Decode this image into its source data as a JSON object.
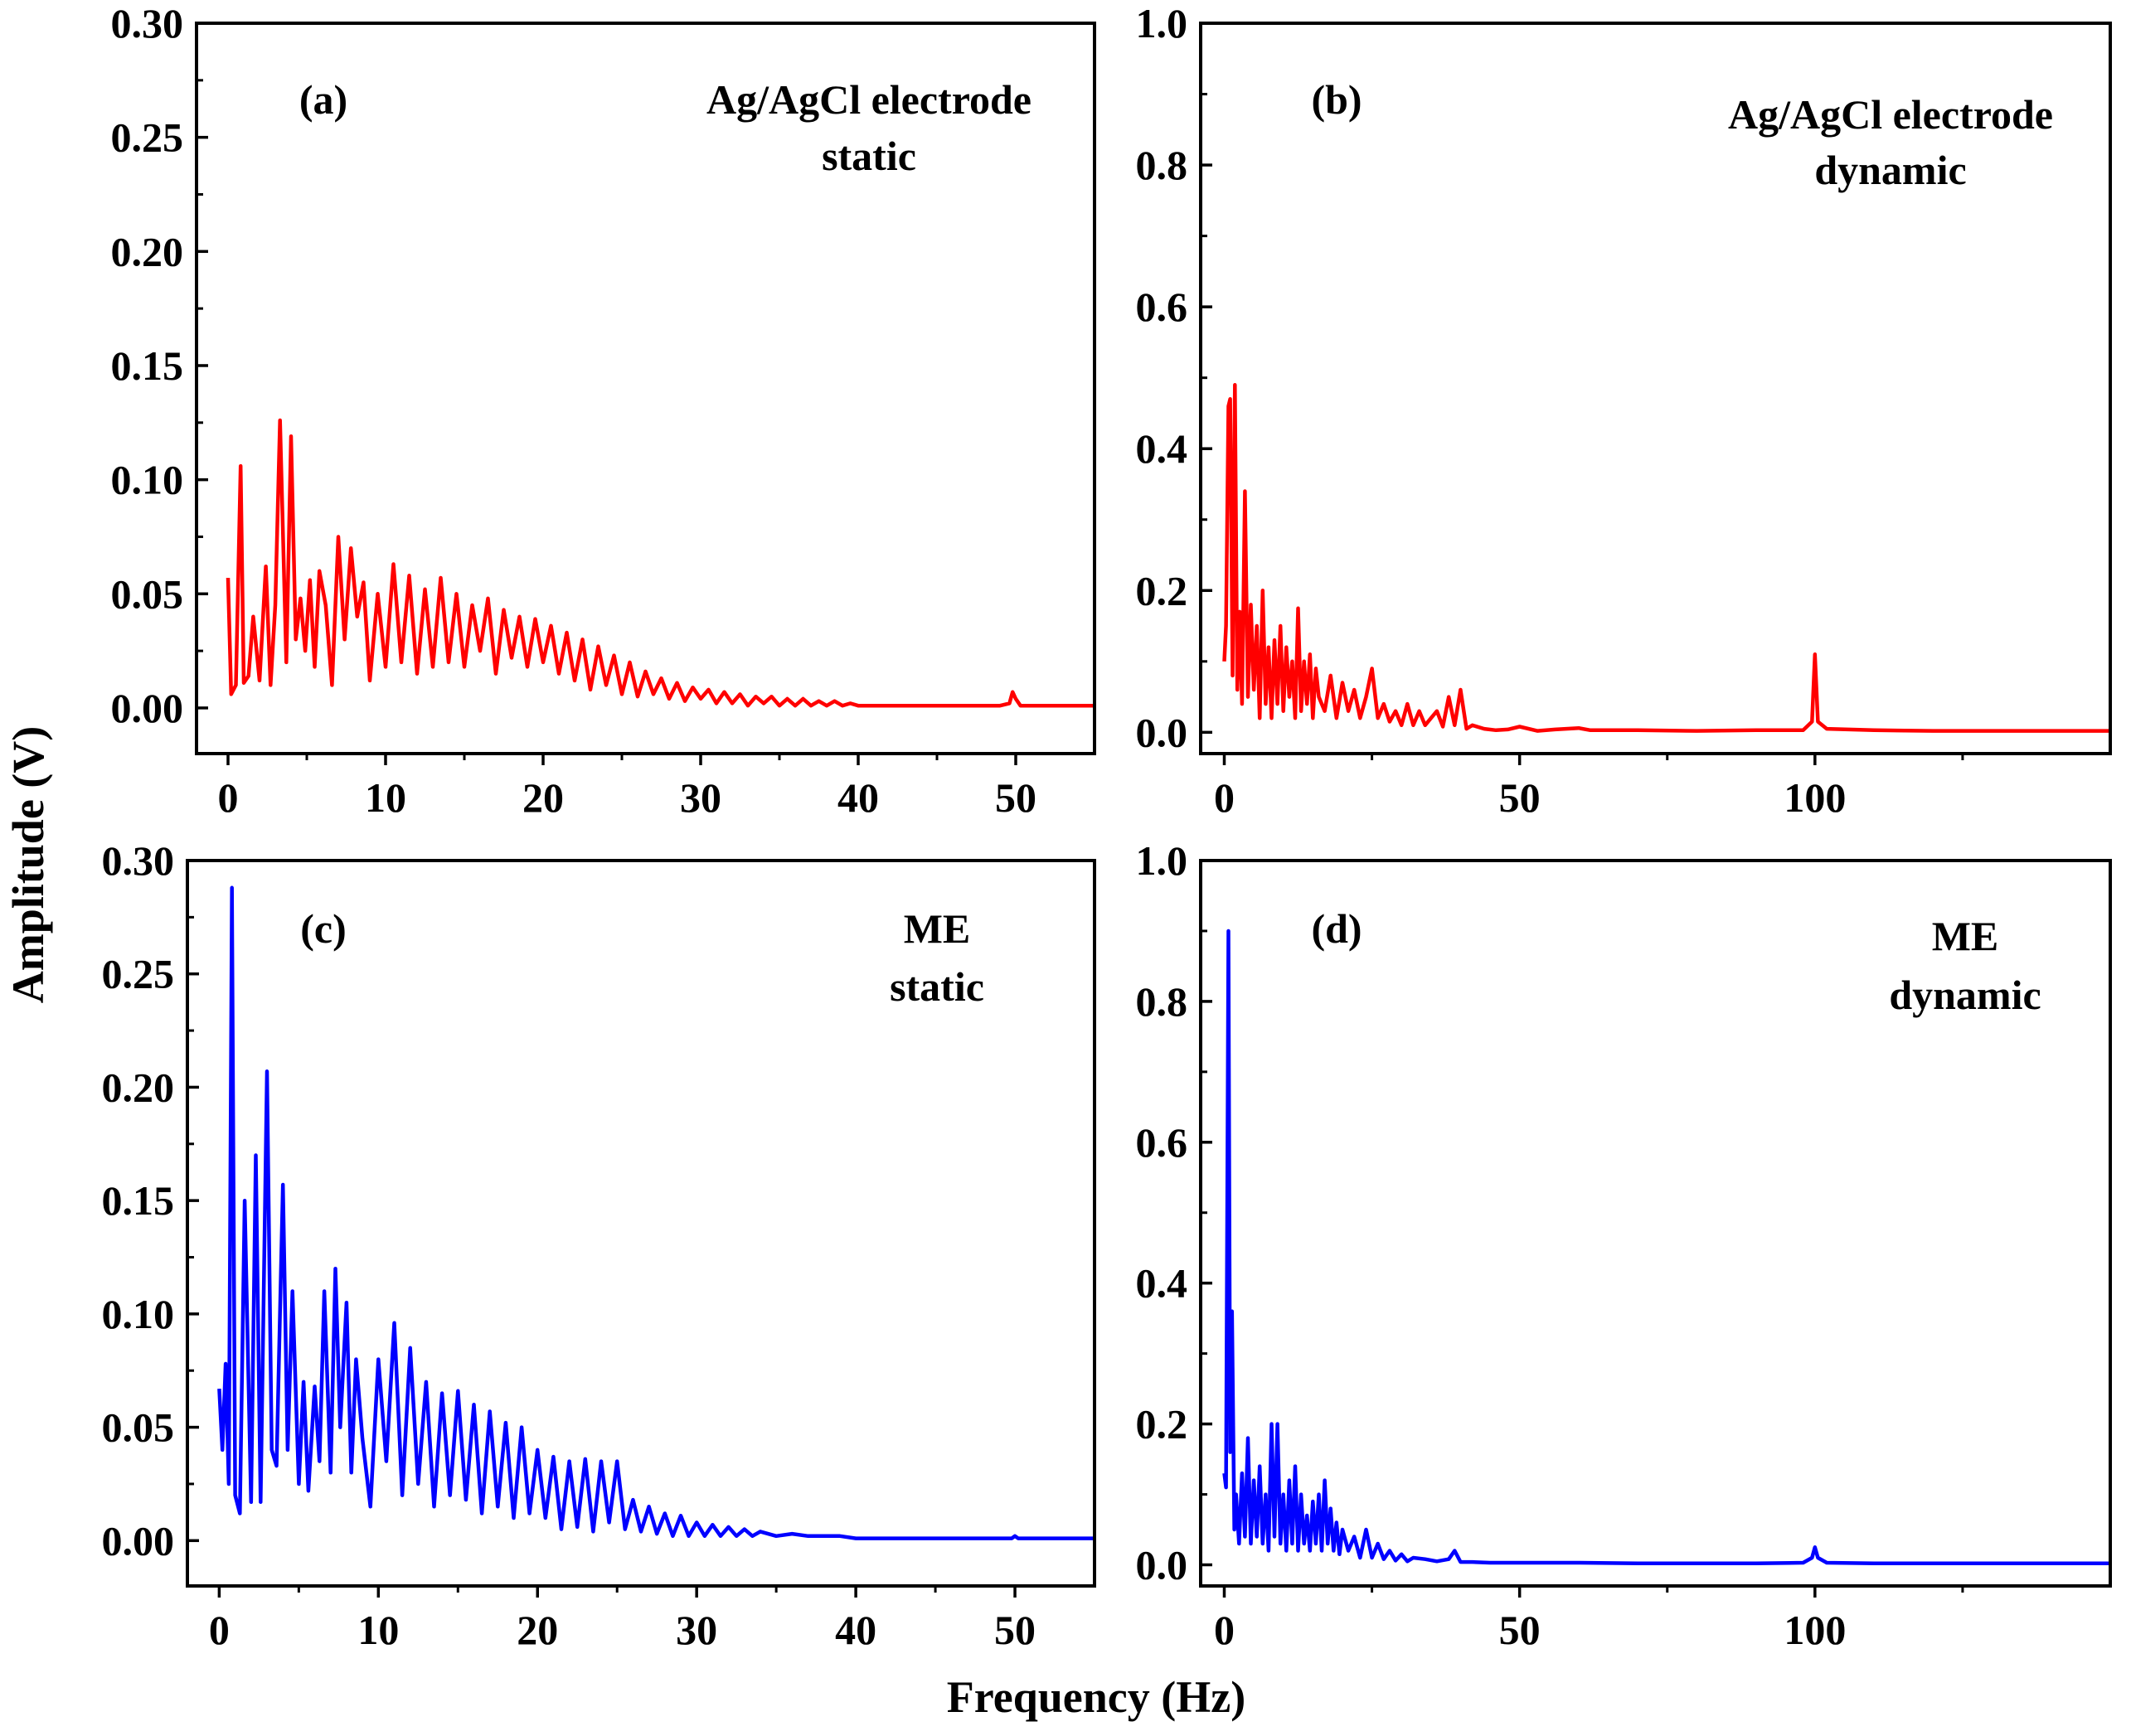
{
  "figure": {
    "ylabel": "Amplitude (V)",
    "xlabel": "Frequency (Hz)"
  },
  "chart_data": [
    {
      "type": "line",
      "panel": "(a)",
      "title_lines": [
        "Ag/AgCl electrode",
        "static"
      ],
      "color": "#ff0000",
      "xlim": [
        -2,
        55
      ],
      "ylim": [
        -0.02,
        0.3
      ],
      "xticks": [
        0,
        10,
        20,
        30,
        40,
        50
      ],
      "xtick_labels": [
        "0",
        "10",
        "20",
        "30",
        "40",
        "50"
      ],
      "yticks": [
        0.0,
        0.05,
        0.1,
        0.15,
        0.2,
        0.25,
        0.3
      ],
      "ytick_labels": [
        "0.00",
        "0.05",
        "0.10",
        "0.15",
        "0.20",
        "0.25",
        "0.30"
      ],
      "series": [
        {
          "name": "Ag/AgCl static",
          "x": [
            0,
            0.2,
            0.5,
            0.8,
            1.0,
            1.3,
            1.6,
            2.0,
            2.4,
            2.7,
            3.0,
            3.3,
            3.7,
            4.0,
            4.3,
            4.6,
            4.9,
            5.2,
            5.5,
            5.8,
            6.2,
            6.6,
            7.0,
            7.4,
            7.8,
            8.2,
            8.6,
            9.0,
            9.5,
            10.0,
            10.5,
            11.0,
            11.5,
            12.0,
            12.5,
            13.0,
            13.5,
            14.0,
            14.5,
            15.0,
            15.5,
            16.0,
            16.5,
            17.0,
            17.5,
            18.0,
            18.5,
            19.0,
            19.5,
            20.0,
            20.5,
            21.0,
            21.5,
            22.0,
            22.5,
            23.0,
            23.5,
            24.0,
            24.5,
            25.0,
            25.5,
            26.0,
            26.5,
            27.0,
            27.5,
            28.0,
            28.5,
            29.0,
            29.5,
            30.0,
            30.5,
            31.0,
            31.5,
            32.0,
            32.5,
            33.0,
            33.5,
            34.0,
            34.5,
            35.0,
            35.5,
            36.0,
            36.5,
            37.0,
            37.5,
            38.0,
            38.5,
            39.0,
            39.5,
            40.0,
            41.0,
            42.0,
            43.0,
            44.0,
            45.0,
            46.0,
            47.0,
            48.0,
            49.0,
            49.6,
            49.8,
            50.0,
            50.3,
            50.8,
            52.0,
            53.0,
            54.0,
            55.0
          ],
          "y": [
            0.057,
            0.006,
            0.01,
            0.106,
            0.011,
            0.014,
            0.04,
            0.012,
            0.062,
            0.01,
            0.045,
            0.126,
            0.02,
            0.119,
            0.03,
            0.048,
            0.025,
            0.056,
            0.018,
            0.06,
            0.045,
            0.01,
            0.075,
            0.03,
            0.07,
            0.04,
            0.055,
            0.012,
            0.05,
            0.018,
            0.063,
            0.02,
            0.058,
            0.015,
            0.052,
            0.018,
            0.057,
            0.02,
            0.05,
            0.018,
            0.045,
            0.025,
            0.048,
            0.015,
            0.043,
            0.022,
            0.04,
            0.018,
            0.039,
            0.02,
            0.036,
            0.015,
            0.033,
            0.012,
            0.03,
            0.008,
            0.027,
            0.01,
            0.023,
            0.006,
            0.02,
            0.005,
            0.016,
            0.006,
            0.013,
            0.004,
            0.011,
            0.003,
            0.009,
            0.004,
            0.008,
            0.002,
            0.007,
            0.002,
            0.006,
            0.001,
            0.005,
            0.002,
            0.005,
            0.001,
            0.004,
            0.001,
            0.004,
            0.001,
            0.003,
            0.001,
            0.003,
            0.001,
            0.002,
            0.001,
            0.001,
            0.001,
            0.001,
            0.001,
            0.001,
            0.001,
            0.001,
            0.001,
            0.001,
            0.002,
            0.007,
            0.004,
            0.001,
            0.001,
            0.001,
            0.001,
            0.001,
            0.001
          ]
        }
      ]
    },
    {
      "type": "line",
      "panel": "(b)",
      "title_lines": [
        "Ag/AgCl electrode",
        "dynamic"
      ],
      "color": "#ff0000",
      "xlim": [
        -4,
        150
      ],
      "ylim": [
        -0.03,
        1.0
      ],
      "xticks": [
        0,
        50,
        100
      ],
      "xtick_labels": [
        "0",
        "50",
        "100"
      ],
      "yticks": [
        0.0,
        0.2,
        0.4,
        0.6,
        0.8,
        1.0
      ],
      "ytick_labels": [
        "0.0",
        "0.2",
        "0.4",
        "0.6",
        "0.8",
        "1.0"
      ],
      "series": [
        {
          "name": "Ag/AgCl dynamic",
          "x": [
            0,
            0.3,
            0.7,
            1.0,
            1.4,
            1.8,
            2.2,
            2.6,
            3.0,
            3.5,
            4.0,
            4.5,
            5.0,
            5.5,
            6.0,
            6.5,
            7.0,
            7.5,
            8.0,
            8.5,
            9.0,
            9.5,
            10.0,
            10.5,
            11.0,
            11.5,
            12.0,
            12.5,
            13.0,
            13.5,
            14.0,
            14.5,
            15.0,
            15.5,
            16.0,
            17.0,
            18.0,
            19.0,
            20.0,
            21.0,
            22.0,
            23.0,
            24.0,
            25.0,
            26.0,
            27.0,
            28.0,
            29.0,
            30.0,
            31.0,
            32.0,
            33.0,
            34.0,
            35.0,
            36.0,
            37.0,
            38.0,
            39.0,
            40.0,
            41.0,
            42.0,
            44.0,
            46.0,
            48.0,
            50.0,
            53.0,
            56.0,
            60.0,
            62.0,
            65.0,
            70.0,
            80.0,
            90.0,
            98.0,
            99.5,
            100.0,
            100.5,
            102.0,
            110.0,
            120.0,
            130.0,
            140.0,
            150.0
          ],
          "y": [
            0.1,
            0.15,
            0.46,
            0.47,
            0.08,
            0.49,
            0.06,
            0.17,
            0.04,
            0.34,
            0.05,
            0.18,
            0.06,
            0.15,
            0.02,
            0.2,
            0.04,
            0.12,
            0.02,
            0.13,
            0.04,
            0.15,
            0.03,
            0.12,
            0.05,
            0.1,
            0.02,
            0.175,
            0.03,
            0.1,
            0.04,
            0.11,
            0.02,
            0.09,
            0.05,
            0.03,
            0.08,
            0.02,
            0.07,
            0.03,
            0.06,
            0.02,
            0.05,
            0.09,
            0.02,
            0.04,
            0.015,
            0.03,
            0.01,
            0.04,
            0.01,
            0.03,
            0.01,
            0.02,
            0.03,
            0.008,
            0.05,
            0.01,
            0.06,
            0.005,
            0.01,
            0.005,
            0.003,
            0.004,
            0.008,
            0.002,
            0.004,
            0.006,
            0.003,
            0.003,
            0.003,
            0.002,
            0.003,
            0.003,
            0.015,
            0.11,
            0.015,
            0.005,
            0.003,
            0.002,
            0.002,
            0.002,
            0.002
          ]
        }
      ]
    },
    {
      "type": "line",
      "panel": "(c)",
      "title_lines": [
        "ME",
        "static"
      ],
      "color": "#0000ff",
      "xlim": [
        -2,
        55
      ],
      "ylim": [
        -0.02,
        0.3
      ],
      "xticks": [
        0,
        10,
        20,
        30,
        40,
        50
      ],
      "xtick_labels": [
        "0",
        "10",
        "20",
        "30",
        "40",
        "50"
      ],
      "yticks": [
        0.0,
        0.05,
        0.1,
        0.15,
        0.2,
        0.25,
        0.3
      ],
      "ytick_labels": [
        "0.00",
        "0.05",
        "0.10",
        "0.15",
        "0.20",
        "0.25",
        "0.30"
      ],
      "series": [
        {
          "name": "ME static",
          "x": [
            0,
            0.2,
            0.4,
            0.6,
            0.8,
            1.0,
            1.3,
            1.6,
            2.0,
            2.3,
            2.6,
            3.0,
            3.3,
            3.6,
            4.0,
            4.3,
            4.6,
            5.0,
            5.3,
            5.6,
            6.0,
            6.3,
            6.6,
            7.0,
            7.3,
            7.6,
            8.0,
            8.3,
            8.6,
            9.0,
            9.5,
            10.0,
            10.5,
            11.0,
            11.5,
            12.0,
            12.5,
            13.0,
            13.5,
            14.0,
            14.5,
            15.0,
            15.5,
            16.0,
            16.5,
            17.0,
            17.5,
            18.0,
            18.5,
            19.0,
            19.5,
            20.0,
            20.5,
            21.0,
            21.5,
            22.0,
            22.5,
            23.0,
            23.5,
            24.0,
            24.5,
            25.0,
            25.5,
            26.0,
            26.5,
            27.0,
            27.5,
            28.0,
            28.5,
            29.0,
            29.5,
            30.0,
            30.5,
            31.0,
            31.5,
            32.0,
            32.5,
            33.0,
            33.5,
            34.0,
            35.0,
            36.0,
            37.0,
            38.0,
            39.0,
            40.0,
            42.0,
            44.0,
            46.0,
            48.0,
            49.8,
            50.0,
            50.2,
            52.0,
            55.0
          ],
          "y": [
            0.067,
            0.04,
            0.078,
            0.025,
            0.288,
            0.02,
            0.012,
            0.15,
            0.017,
            0.17,
            0.017,
            0.207,
            0.04,
            0.033,
            0.157,
            0.04,
            0.11,
            0.025,
            0.07,
            0.022,
            0.068,
            0.035,
            0.11,
            0.03,
            0.12,
            0.05,
            0.105,
            0.03,
            0.08,
            0.045,
            0.015,
            0.08,
            0.035,
            0.096,
            0.02,
            0.085,
            0.025,
            0.07,
            0.015,
            0.065,
            0.02,
            0.066,
            0.018,
            0.06,
            0.012,
            0.057,
            0.015,
            0.052,
            0.01,
            0.05,
            0.012,
            0.04,
            0.01,
            0.037,
            0.005,
            0.035,
            0.006,
            0.036,
            0.004,
            0.035,
            0.008,
            0.035,
            0.005,
            0.018,
            0.004,
            0.015,
            0.003,
            0.012,
            0.002,
            0.011,
            0.002,
            0.008,
            0.002,
            0.007,
            0.002,
            0.006,
            0.002,
            0.005,
            0.002,
            0.004,
            0.002,
            0.003,
            0.002,
            0.002,
            0.002,
            0.001,
            0.001,
            0.001,
            0.001,
            0.001,
            0.001,
            0.002,
            0.001,
            0.001,
            0.001
          ]
        }
      ]
    },
    {
      "type": "line",
      "panel": "(d)",
      "title_lines": [
        "ME",
        "dynamic"
      ],
      "color": "#0000ff",
      "xlim": [
        -4,
        150
      ],
      "ylim": [
        -0.03,
        1.0
      ],
      "xticks": [
        0,
        50,
        100
      ],
      "xtick_labels": [
        "0",
        "50",
        "100"
      ],
      "yticks": [
        0.0,
        0.2,
        0.4,
        0.6,
        0.8,
        1.0
      ],
      "ytick_labels": [
        "0.0",
        "0.2",
        "0.4",
        "0.6",
        "0.8",
        "1.0"
      ],
      "series": [
        {
          "name": "ME dynamic",
          "x": [
            0,
            0.3,
            0.7,
            1.0,
            1.3,
            1.7,
            2.0,
            2.5,
            3.0,
            3.5,
            4.0,
            4.5,
            5.0,
            5.5,
            6.0,
            6.5,
            7.0,
            7.5,
            8.0,
            8.5,
            9.0,
            9.5,
            10.0,
            10.5,
            11.0,
            11.5,
            12.0,
            12.5,
            13.0,
            13.5,
            14.0,
            14.5,
            15.0,
            15.5,
            16.0,
            16.5,
            17.0,
            17.5,
            18.0,
            18.5,
            19.0,
            19.5,
            20.0,
            21.0,
            22.0,
            23.0,
            24.0,
            25.0,
            26.0,
            27.0,
            28.0,
            29.0,
            30.0,
            31.0,
            32.0,
            34.0,
            36.0,
            38.0,
            39.0,
            40.0,
            42.0,
            45.0,
            50.0,
            60.0,
            70.0,
            80.0,
            90.0,
            98.0,
            99.5,
            100.0,
            100.5,
            102.0,
            110.0,
            120.0,
            130.0,
            140.0,
            150.0
          ],
          "y": [
            0.13,
            0.11,
            0.9,
            0.16,
            0.36,
            0.05,
            0.1,
            0.03,
            0.13,
            0.04,
            0.18,
            0.03,
            0.12,
            0.04,
            0.14,
            0.03,
            0.1,
            0.02,
            0.2,
            0.04,
            0.2,
            0.03,
            0.1,
            0.02,
            0.12,
            0.03,
            0.14,
            0.02,
            0.1,
            0.03,
            0.07,
            0.02,
            0.09,
            0.03,
            0.1,
            0.02,
            0.12,
            0.03,
            0.08,
            0.02,
            0.06,
            0.015,
            0.05,
            0.02,
            0.04,
            0.01,
            0.05,
            0.01,
            0.03,
            0.008,
            0.02,
            0.006,
            0.015,
            0.005,
            0.01,
            0.008,
            0.005,
            0.008,
            0.02,
            0.004,
            0.004,
            0.003,
            0.003,
            0.003,
            0.002,
            0.002,
            0.002,
            0.003,
            0.01,
            0.025,
            0.01,
            0.003,
            0.002,
            0.002,
            0.002,
            0.002,
            0.002
          ]
        }
      ]
    }
  ]
}
